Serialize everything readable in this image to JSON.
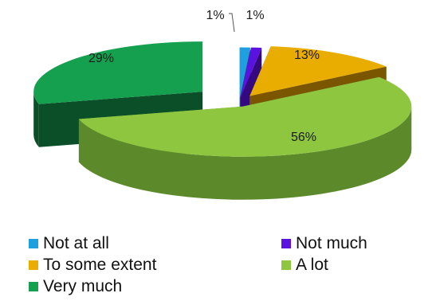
{
  "chart_data": {
    "type": "pie",
    "variant": "3d-exploded",
    "title": "",
    "series": [
      {
        "label": "Not at all",
        "value": 1,
        "data_label": "1%",
        "color": "#1e9fe0",
        "side_color": "#116a99"
      },
      {
        "label": "Not much",
        "value": 1,
        "data_label": "1%",
        "color": "#5a12e0",
        "side_color": "#34087f"
      },
      {
        "label": "To some extent",
        "value": 13,
        "data_label": "13%",
        "color": "#e8ad00",
        "side_color": "#7a5600"
      },
      {
        "label": "A lot",
        "value": 56,
        "data_label": "56%",
        "color": "#8fc640",
        "side_color": "#5c8a2a"
      },
      {
        "label": "Very much",
        "value": 29,
        "data_label": "29%",
        "color": "#15a050",
        "side_color": "#0b4f29"
      }
    ],
    "legend_position": "bottom",
    "legend_columns": 2
  }
}
